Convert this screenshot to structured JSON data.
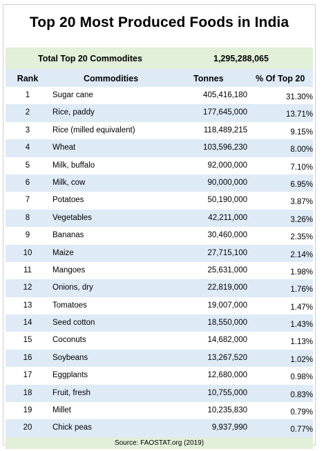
{
  "title": "Top 20 Most Produced Foods in India",
  "total": {
    "label": "Total Top 20 Commodites",
    "value": "1,295,288,065"
  },
  "columns": {
    "rank": "Rank",
    "commodity": "Commodities",
    "tonnes": "Tonnes",
    "pct": "% Of Top 20"
  },
  "rows": [
    {
      "rank": "1",
      "commodity": "Sugar cane",
      "tonnes": "405,416,180",
      "pct": "31.30%"
    },
    {
      "rank": "2",
      "commodity": "Rice, paddy",
      "tonnes": "177,645,000",
      "pct": "13.71%"
    },
    {
      "rank": "3",
      "commodity": "Rice (milled equivalent)",
      "tonnes": "118,489,215",
      "pct": "9.15%"
    },
    {
      "rank": "4",
      "commodity": "Wheat",
      "tonnes": "103,596,230",
      "pct": "8.00%"
    },
    {
      "rank": "5",
      "commodity": "Milk, buffalo",
      "tonnes": "92,000,000",
      "pct": "7.10%"
    },
    {
      "rank": "6",
      "commodity": "Milk,  cow",
      "tonnes": "90,000,000",
      "pct": "6.95%"
    },
    {
      "rank": "7",
      "commodity": "Potatoes",
      "tonnes": "50,190,000",
      "pct": "3.87%"
    },
    {
      "rank": "8",
      "commodity": "Vegetables",
      "tonnes": "42,211,000",
      "pct": "3.26%"
    },
    {
      "rank": "9",
      "commodity": "Bananas",
      "tonnes": "30,460,000",
      "pct": "2.35%"
    },
    {
      "rank": "10",
      "commodity": "Maize",
      "tonnes": "27,715,100",
      "pct": "2.14%"
    },
    {
      "rank": "11",
      "commodity": "Mangoes",
      "tonnes": "25,631,000",
      "pct": "1.98%"
    },
    {
      "rank": "12",
      "commodity": "Onions, dry",
      "tonnes": "22,819,000",
      "pct": "1.76%"
    },
    {
      "rank": "13",
      "commodity": "Tomatoes",
      "tonnes": "19,007,000",
      "pct": "1.47%"
    },
    {
      "rank": "14",
      "commodity": "Seed cotton",
      "tonnes": "18,550,000",
      "pct": "1.43%"
    },
    {
      "rank": "15",
      "commodity": "Coconuts",
      "tonnes": "14,682,000",
      "pct": "1.13%"
    },
    {
      "rank": "16",
      "commodity": "Soybeans",
      "tonnes": "13,267,520",
      "pct": "1.02%"
    },
    {
      "rank": "17",
      "commodity": "Eggplants",
      "tonnes": "12,680,000",
      "pct": "0.98%"
    },
    {
      "rank": "18",
      "commodity": "Fruit, fresh",
      "tonnes": "10,755,000",
      "pct": "0.83%"
    },
    {
      "rank": "19",
      "commodity": "Millet",
      "tonnes": "10,235,830",
      "pct": "0.79%"
    },
    {
      "rank": "20",
      "commodity": "Chick peas",
      "tonnes": "9,937,990",
      "pct": "0.77%"
    }
  ],
  "source": "Source:  FAOSTAT.org (2019)",
  "colors": {
    "header_band": "#deeaf6",
    "total_band": "#e2efd9"
  }
}
